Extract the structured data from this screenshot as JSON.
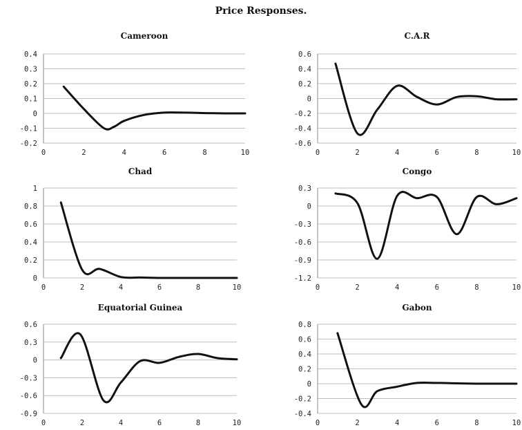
{
  "figure_title": "Price Responses.",
  "chart_data": [
    {
      "type": "line",
      "title": "Cameroon",
      "xlabel": "",
      "ylabel": "",
      "xlim": [
        0,
        10
      ],
      "ylim": [
        -0.2,
        0.4
      ],
      "xticks": [
        0,
        2,
        4,
        6,
        8,
        10
      ],
      "yticks": [
        -0.2,
        -0.1,
        0,
        0.1,
        0.2,
        0.3,
        0.4
      ],
      "xtick_labels": [
        "0",
        "2",
        "4",
        "6",
        "8",
        "10"
      ],
      "ytick_labels": [
        "-0.2",
        "-0.1",
        "0",
        "0.1",
        "0.2",
        "0.3",
        "0.4"
      ],
      "grid": true,
      "series": [
        {
          "x": [
            1,
            2,
            3,
            3.5,
            4,
            5,
            6,
            7,
            8,
            9,
            10
          ],
          "y": [
            0.18,
            0.03,
            -0.1,
            -0.09,
            -0.05,
            -0.01,
            0.005,
            0.005,
            0.002,
            0.0,
            0.0
          ]
        }
      ]
    },
    {
      "type": "line",
      "title": "C.A.R",
      "xlabel": "",
      "ylabel": "",
      "xlim": [
        0,
        10
      ],
      "ylim": [
        -0.6,
        0.6
      ],
      "xticks": [
        0,
        2,
        4,
        6,
        8,
        10
      ],
      "yticks": [
        -0.6,
        -0.4,
        -0.2,
        0,
        0.2,
        0.4,
        0.6
      ],
      "xtick_labels": [
        "0",
        "2",
        "4",
        "6",
        "8",
        "10"
      ],
      "ytick_labels": [
        "-0.6",
        "-0.4",
        "-0.2",
        "0",
        "0.2",
        "0.4",
        "0.6"
      ],
      "grid": true,
      "series": [
        {
          "x": [
            0.9,
            2,
            3,
            4,
            5,
            6,
            7,
            8,
            9,
            10
          ],
          "y": [
            0.47,
            -0.47,
            -0.15,
            0.17,
            0.02,
            -0.08,
            0.02,
            0.03,
            -0.01,
            -0.01
          ]
        }
      ]
    },
    {
      "type": "line",
      "title": "Chad",
      "xlabel": "",
      "ylabel": "",
      "xlim": [
        0,
        10
      ],
      "ylim": [
        0,
        1
      ],
      "xticks": [
        0,
        2,
        4,
        6,
        8,
        10
      ],
      "yticks": [
        0,
        0.2,
        0.4,
        0.6,
        0.8,
        1
      ],
      "xtick_labels": [
        "0",
        "2",
        "4",
        "6",
        "8",
        "10"
      ],
      "ytick_labels": [
        "0",
        "0.2",
        "0.4",
        "0.6",
        "0.8",
        "1"
      ],
      "grid": true,
      "series": [
        {
          "x": [
            0.9,
            2,
            2.9,
            4,
            5,
            6,
            7,
            8,
            9,
            10
          ],
          "y": [
            0.84,
            0.09,
            0.1,
            0.01,
            0.005,
            0.0,
            0.0,
            0.0,
            0.0,
            0.0
          ]
        }
      ]
    },
    {
      "type": "line",
      "title": "Congo",
      "xlabel": "",
      "ylabel": "",
      "xlim": [
        0,
        10
      ],
      "ylim": [
        -1.2,
        0.3
      ],
      "xticks": [
        0,
        2,
        4,
        6,
        8,
        10
      ],
      "yticks": [
        -1.2,
        -0.9,
        -0.6,
        -0.3,
        0,
        0.3
      ],
      "xtick_labels": [
        "0",
        "2",
        "4",
        "6",
        "8",
        "10"
      ],
      "ytick_labels": [
        "-1.2",
        "-0.9",
        "-0.6",
        "-0.3",
        "0",
        "0.3"
      ],
      "grid": true,
      "series": [
        {
          "x": [
            0.9,
            2,
            3,
            4,
            5,
            6,
            7,
            8,
            9,
            10
          ],
          "y": [
            0.21,
            0.05,
            -0.88,
            0.17,
            0.13,
            0.15,
            -0.47,
            0.15,
            0.03,
            0.13
          ]
        }
      ]
    },
    {
      "type": "line",
      "title": "Equatorial Guinea",
      "xlabel": "",
      "ylabel": "",
      "xlim": [
        0,
        10
      ],
      "ylim": [
        -0.9,
        0.6
      ],
      "xticks": [
        0,
        2,
        4,
        6,
        8,
        10
      ],
      "yticks": [
        -0.9,
        -0.6,
        -0.3,
        0,
        0.3,
        0.6
      ],
      "xtick_labels": [
        "0",
        "2",
        "4",
        "6",
        "8",
        "10"
      ],
      "ytick_labels": [
        "-0.9",
        "-0.6",
        "-0.3",
        "0",
        "0.3",
        "0.6"
      ],
      "grid": true,
      "series": [
        {
          "x": [
            0.9,
            1.9,
            3.1,
            4,
            5,
            6,
            7,
            8,
            9,
            10
          ],
          "y": [
            0.03,
            0.43,
            -0.68,
            -0.38,
            -0.02,
            -0.05,
            0.05,
            0.1,
            0.03,
            0.01
          ]
        }
      ]
    },
    {
      "type": "line",
      "title": "Gabon",
      "xlabel": "",
      "ylabel": "",
      "xlim": [
        0,
        10
      ],
      "ylim": [
        -0.4,
        0.8
      ],
      "xticks": [
        0,
        2,
        4,
        6,
        8,
        10
      ],
      "yticks": [
        -0.4,
        -0.2,
        0,
        0.2,
        0.4,
        0.6,
        0.8
      ],
      "xtick_labels": [
        "0",
        "2",
        "4",
        "6",
        "8",
        "10"
      ],
      "ytick_labels": [
        "-0.4",
        "-0.2",
        "0",
        "0.2",
        "0.4",
        "0.6",
        "0.8"
      ],
      "grid": true,
      "series": [
        {
          "x": [
            1,
            2.2,
            3,
            4,
            5,
            6,
            7,
            8,
            9,
            10
          ],
          "y": [
            0.68,
            -0.28,
            -0.1,
            -0.04,
            0.01,
            0.01,
            0.005,
            0.0,
            0.0,
            0.0
          ]
        }
      ]
    }
  ]
}
